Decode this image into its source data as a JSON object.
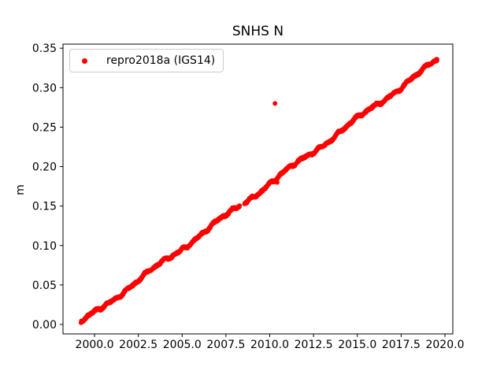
{
  "chart_data": {
    "type": "scatter",
    "title": "SNHS N",
    "xlabel": "",
    "ylabel": "m",
    "xlim": [
      1998.2,
      2020.45
    ],
    "ylim": [
      -0.012,
      0.3552
    ],
    "xtick_labels": [
      "2000.0",
      "2002.5",
      "2005.0",
      "2007.5",
      "2010.0",
      "2012.5",
      "2015.0",
      "2017.5",
      "2020.0"
    ],
    "ytick_labels": [
      "0.00",
      "0.05",
      "0.10",
      "0.15",
      "0.20",
      "0.25",
      "0.30",
      "0.35"
    ],
    "grid": false,
    "background": "#ffffff",
    "axis_color": "#000000",
    "legend": {
      "position": "upper-left",
      "entries": [
        {
          "label": "repro2018a (IGS14)",
          "marker": "dot-icon",
          "color": "#ff0000"
        }
      ]
    },
    "series": [
      {
        "name": "repro2018a (IGS14)",
        "color": "#ff0000",
        "marker": "dot",
        "trend": {
          "x_start": 1999.22,
          "x_end": 2019.56,
          "y_start": 0.002,
          "y_end": 0.335
        },
        "slope_m_per_year": 0.01637,
        "gaps": [
          [
            2008.28,
            2008.55
          ]
        ],
        "outliers": [
          [
            2010.3,
            0.28
          ],
          [
            2010.42,
            0.18
          ]
        ],
        "sample_step_years": 0.012,
        "noise_amplitude": 0.0013,
        "wiggle": [
          {
            "period": 3.9,
            "amplitude": 0.0022,
            "phase": 0.8
          },
          {
            "period": 1.0,
            "amplitude": 0.0012,
            "phase": 2.0
          },
          {
            "period": 0.55,
            "amplitude": 0.0009,
            "phase": 1.1
          }
        ]
      }
    ]
  }
}
